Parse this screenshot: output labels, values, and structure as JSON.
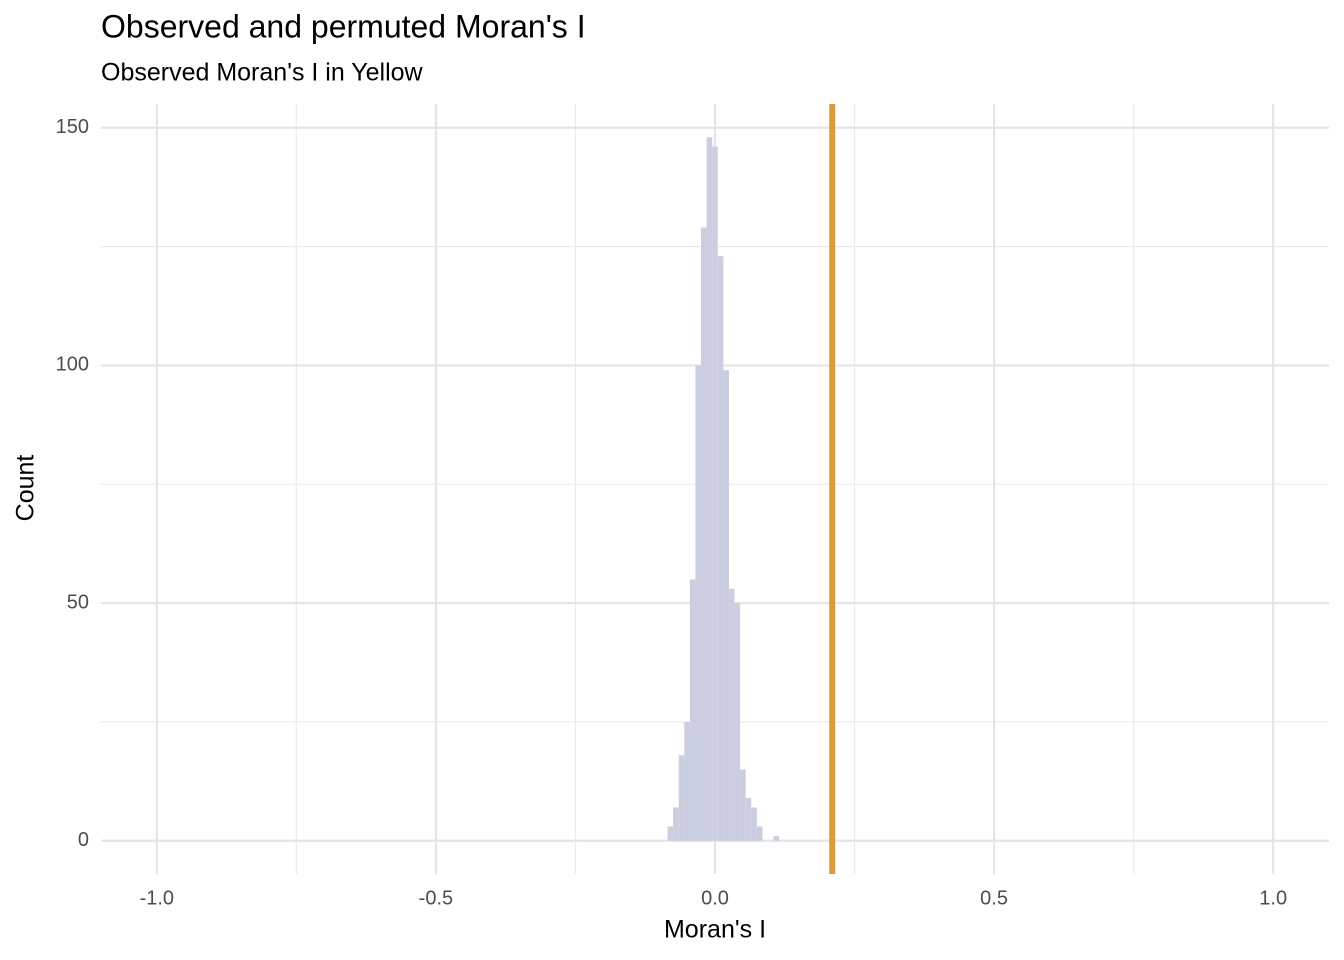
{
  "chart_data": {
    "type": "histogram",
    "title": "Observed and permuted Moran's I",
    "subtitle": "Observed Moran's I in Yellow",
    "x_label": "Moran's I",
    "y_label": "Count",
    "bins": [
      -0.085,
      -0.075,
      -0.065,
      -0.055,
      -0.045,
      -0.035,
      -0.025,
      -0.015,
      -0.005,
      0.005,
      0.015,
      0.025,
      0.035,
      0.045,
      0.055,
      0.065,
      0.075,
      0.085,
      0.095,
      0.105,
      0.115
    ],
    "values": [
      3,
      7,
      18,
      25,
      55,
      100,
      129,
      148,
      146,
      123,
      99,
      53,
      50,
      15,
      9,
      7,
      3,
      0,
      0,
      1
    ],
    "color": "#cbcde0",
    "observed": 0.21,
    "observed_color": "#dc9a3f",
    "xlim": [
      -1.1,
      1.1
    ],
    "ylim": [
      -7,
      155
    ],
    "xticks": [
      {
        "value": -1.0,
        "label": "-1.0"
      },
      {
        "value": -0.5,
        "label": "-0.5"
      },
      {
        "value": 0.0,
        "label": "0.0"
      },
      {
        "value": 0.5,
        "label": "0.5"
      },
      {
        "value": 1.0,
        "label": "1.0"
      }
    ],
    "yticks": [
      0,
      50,
      100,
      150
    ],
    "grid": true
  }
}
